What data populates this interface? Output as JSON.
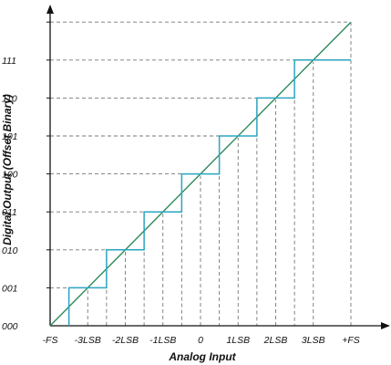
{
  "title": "",
  "x_axis": {
    "label": "Analog Input",
    "ticks": [
      "-FS",
      "-3LSB",
      "-2LSB",
      "-1LSB",
      "0",
      "1LSB",
      "2LSB",
      "3LSB",
      "+FS"
    ]
  },
  "y_axis": {
    "label": "Digital Output (Offset Binary)",
    "ticks": [
      "000",
      "001",
      "010",
      "011",
      "100",
      "101",
      "110",
      "111"
    ]
  },
  "colors": {
    "staircase": "#2ba5c1",
    "ideal_line": "#2e8a5a",
    "axes": "#111111",
    "guides": "#777777"
  },
  "chart_data": {
    "type": "line",
    "grid": false,
    "series": [
      {
        "kind": "staircase",
        "transitions": [
          "-3.5LSB",
          "-2.5LSB",
          "-1.5LSB",
          "-0.5LSB",
          "0.5LSB",
          "1.5LSB",
          "2.5LSB"
        ],
        "codes": [
          "000",
          "001",
          "010",
          "011",
          "100",
          "101",
          "110",
          "111"
        ]
      },
      {
        "kind": "ideal-line",
        "from": [
          "-FS",
          "000"
        ],
        "to": [
          "+FS",
          "top"
        ]
      }
    ]
  }
}
